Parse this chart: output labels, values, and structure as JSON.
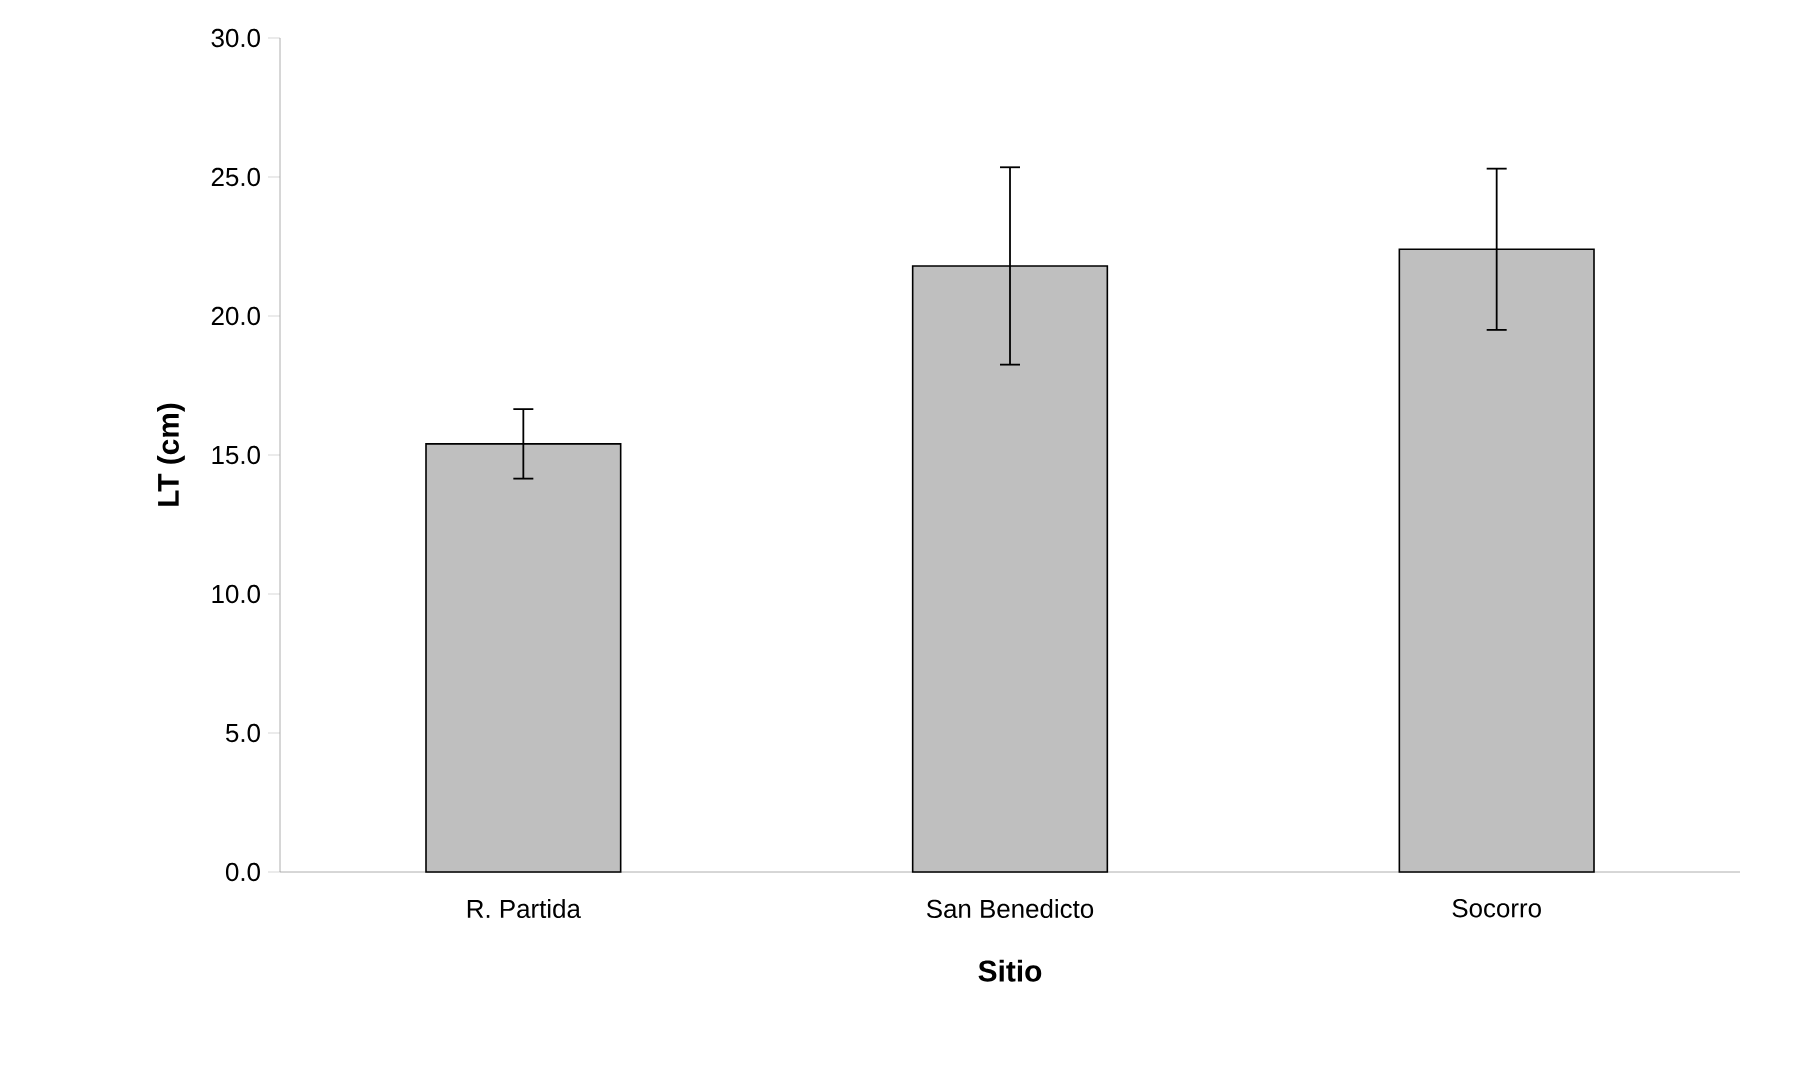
{
  "chart_data": {
    "type": "bar",
    "xlabel": "Sitio",
    "ylabel": "LT (cm)",
    "categories": [
      "R. Partida",
      "San Benedicto",
      "Socorro"
    ],
    "values": [
      15.4,
      21.8,
      22.4
    ],
    "errors": [
      1.25,
      3.55,
      2.9
    ],
    "color": "#bfbfbf",
    "ylim": [
      0,
      30
    ],
    "yticks": [
      {
        "value": 0,
        "label": "0.0"
      },
      {
        "value": 5,
        "label": "5.0"
      },
      {
        "value": 10,
        "label": "10.0"
      },
      {
        "value": 15,
        "label": "15.0"
      },
      {
        "value": 20,
        "label": "20.0"
      },
      {
        "value": 25,
        "label": "25.0"
      },
      {
        "value": 30,
        "label": "30.0"
      }
    ],
    "grid": false
  }
}
